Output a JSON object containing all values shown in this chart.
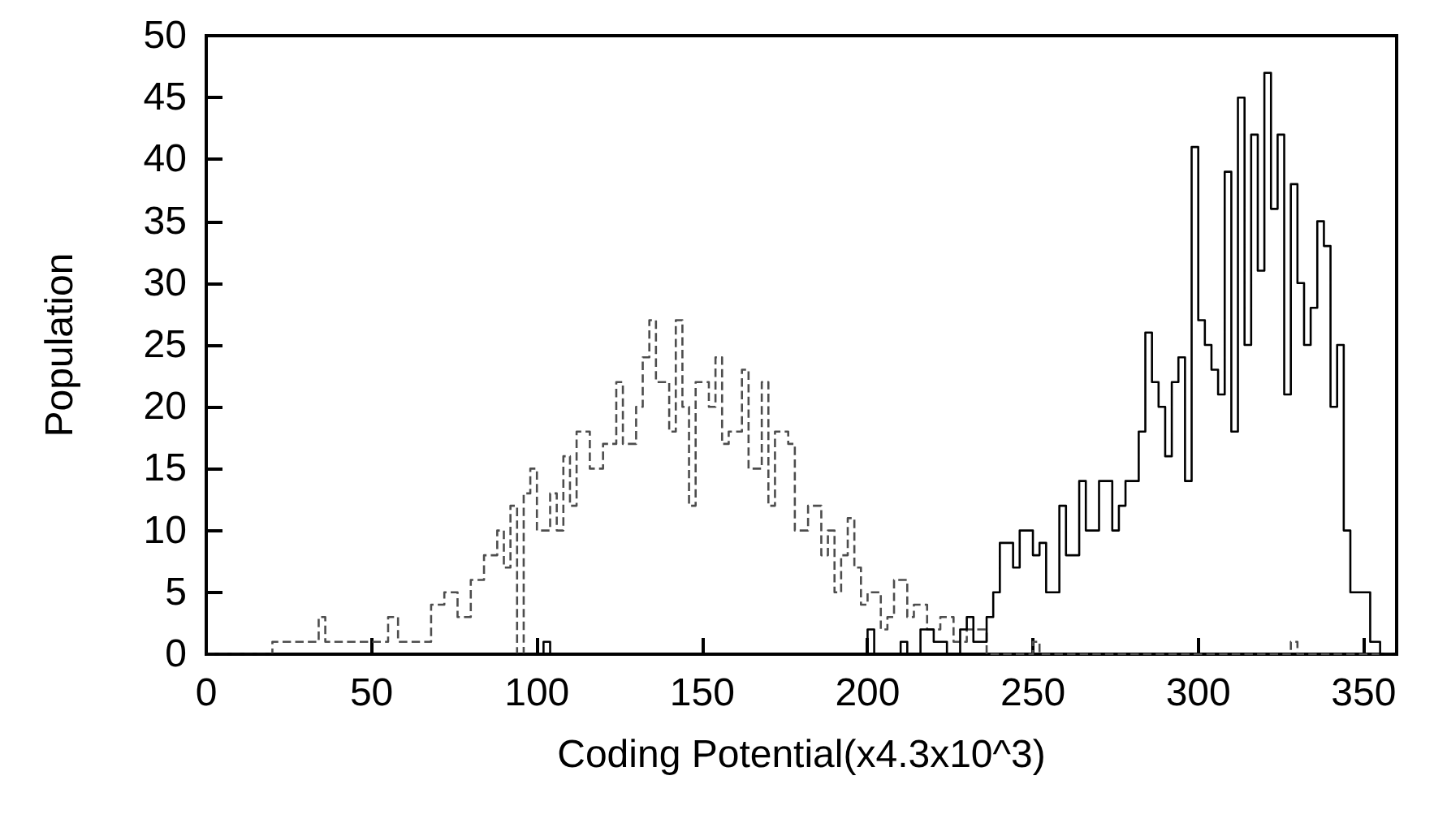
{
  "chart_data": {
    "type": "step",
    "xlabel": "Coding Potential(x4.3x10^3)",
    "ylabel": "Population",
    "xlim": [
      0,
      360
    ],
    "xticks": [
      0,
      50,
      100,
      150,
      200,
      250,
      300,
      350
    ],
    "ylim": [
      0,
      50
    ],
    "yticks": [
      0,
      5,
      10,
      15,
      20,
      25,
      30,
      35,
      40,
      45,
      50
    ],
    "marker": "none",
    "series": [
      {
        "color": "#4d4d4d",
        "line_style": "dashed",
        "x": [
          0,
          20,
          30,
          34,
          36,
          45,
          55,
          58,
          65,
          68,
          72,
          76,
          80,
          84,
          88,
          90,
          92,
          94,
          96,
          98,
          100,
          104,
          106,
          108,
          110,
          112,
          116,
          120,
          124,
          126,
          130,
          132,
          134,
          136,
          140,
          142,
          144,
          146,
          148,
          152,
          154,
          156,
          158,
          162,
          164,
          168,
          170,
          172,
          176,
          178,
          182,
          186,
          188,
          190,
          192,
          194,
          196,
          198,
          200,
          204,
          206,
          208,
          212,
          214,
          218,
          222,
          226,
          230,
          236,
          250,
          252,
          328,
          330,
          360
        ],
        "values": [
          0,
          1,
          1,
          3,
          1,
          1,
          3,
          1,
          1,
          4,
          5,
          3,
          6,
          8,
          10,
          7,
          12,
          0,
          13,
          15,
          10,
          13,
          10,
          16,
          12,
          18,
          15,
          17,
          22,
          17,
          20,
          24,
          27,
          22,
          18,
          27,
          20,
          12,
          22,
          20,
          24,
          17,
          18,
          23,
          15,
          22,
          12,
          18,
          17,
          10,
          12,
          8,
          10,
          5,
          8,
          11,
          7,
          4,
          5,
          2,
          3,
          6,
          3,
          4,
          2,
          3,
          1,
          2,
          0,
          1,
          0,
          1,
          0,
          0
        ]
      },
      {
        "color": "#000000",
        "line_style": "solid",
        "x": [
          0,
          102,
          104,
          200,
          202,
          210,
          212,
          216,
          220,
          224,
          228,
          230,
          232,
          236,
          238,
          240,
          244,
          246,
          250,
          252,
          254,
          258,
          260,
          264,
          266,
          270,
          274,
          276,
          278,
          282,
          284,
          286,
          288,
          290,
          292,
          294,
          296,
          298,
          300,
          302,
          304,
          306,
          308,
          310,
          312,
          314,
          316,
          318,
          320,
          322,
          324,
          326,
          328,
          330,
          332,
          334,
          336,
          338,
          340,
          342,
          344,
          346,
          350,
          352,
          355,
          360
        ],
        "values": [
          0,
          1,
          0,
          2,
          0,
          1,
          0,
          2,
          1,
          0,
          2,
          3,
          1,
          3,
          5,
          9,
          7,
          10,
          8,
          9,
          5,
          12,
          8,
          14,
          10,
          14,
          10,
          12,
          14,
          18,
          26,
          22,
          20,
          16,
          22,
          24,
          14,
          41,
          27,
          25,
          23,
          21,
          39,
          18,
          45,
          25,
          42,
          31,
          47,
          36,
          42,
          21,
          38,
          30,
          25,
          28,
          35,
          33,
          20,
          25,
          10,
          5,
          5,
          1,
          0,
          0
        ]
      }
    ]
  }
}
